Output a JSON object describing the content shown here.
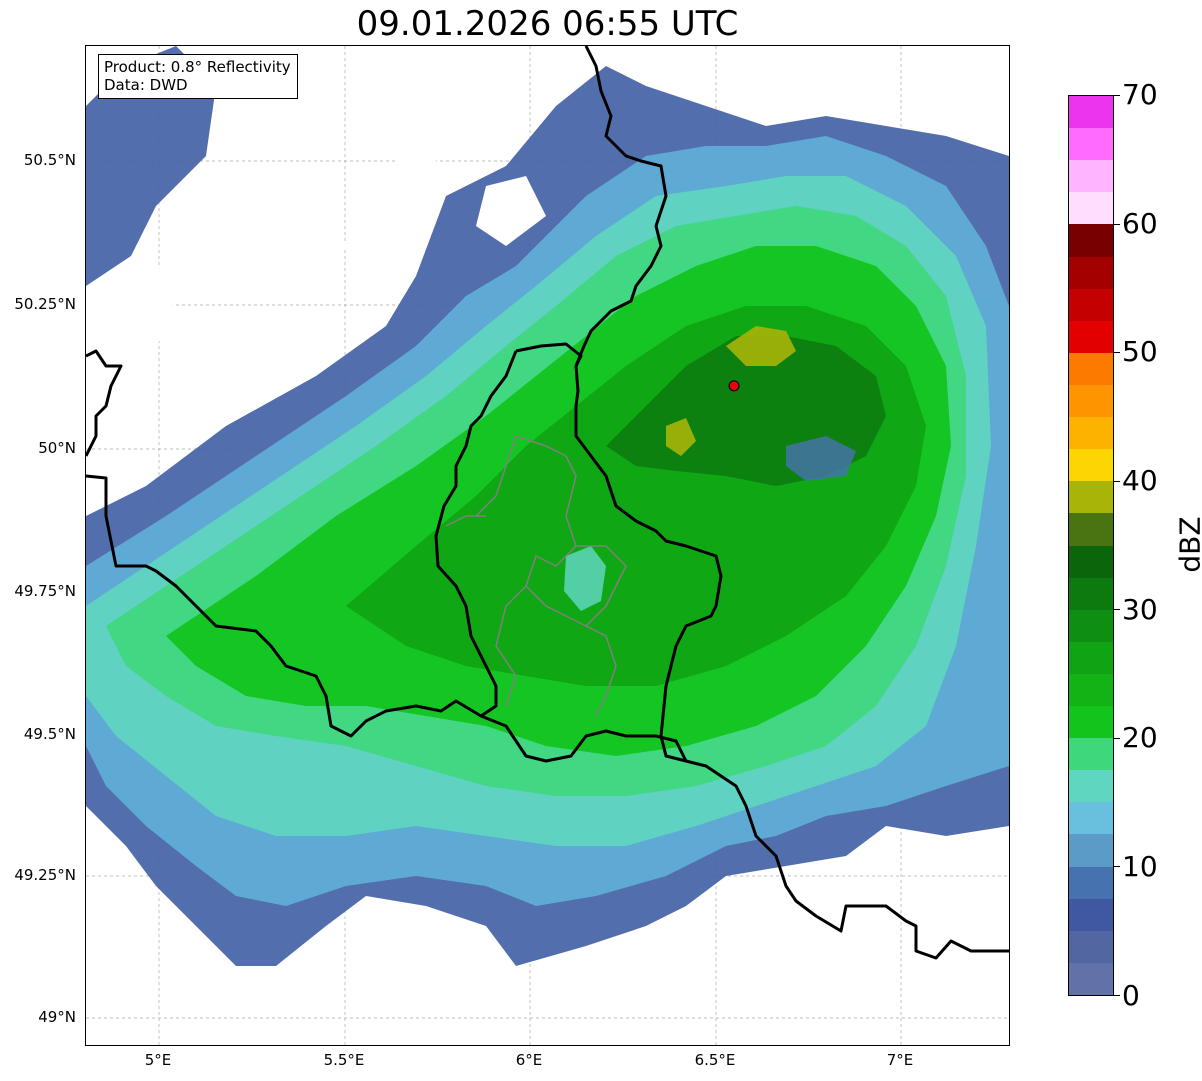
{
  "title": "09.01.2026 06:55 UTC",
  "info": {
    "product": "Product: 0.8° Reflectivity",
    "source": "Data: DWD"
  },
  "axes": {
    "lon_range": [
      4.8,
      7.3
    ],
    "lat_range": [
      48.95,
      50.7
    ],
    "lat_ticks": [
      "50.5°N",
      "50.25°N",
      "50°N",
      "49.75°N",
      "49.5°N",
      "49.25°N",
      "49°N"
    ],
    "lat_values": [
      50.5,
      50.25,
      50.0,
      49.75,
      49.5,
      49.25,
      49.0
    ],
    "lon_ticks": [
      "5°E",
      "5.5°E",
      "6°E",
      "6.5°E",
      "7°E"
    ],
    "lon_values": [
      5.0,
      5.5,
      6.0,
      6.5,
      7.0
    ]
  },
  "radar_site": {
    "lon": 6.55,
    "lat": 50.11,
    "color": "#e8000b"
  },
  "colorbar": {
    "label": "dBZ",
    "min": 0,
    "max": 70,
    "tick_labels": [
      "70",
      "60",
      "50",
      "40",
      "30",
      "20",
      "10",
      "0"
    ],
    "tick_values": [
      70,
      60,
      50,
      40,
      30,
      20,
      10,
      0
    ],
    "colors": [
      "#6271a8",
      "#5267a2",
      "#40589f",
      "#4772b0",
      "#5a9bc8",
      "#68c0de",
      "#5fd6c0",
      "#3fd77c",
      "#13c41d",
      "#12b415",
      "#10a313",
      "#0e8f11",
      "#0c7a0e",
      "#0a650b",
      "#4a7312",
      "#a9b409",
      "#fdd500",
      "#fdb200",
      "#fd9400",
      "#fd7a00",
      "#e30000",
      "#c40000",
      "#a50000",
      "#780000",
      "#ffddff",
      "#ffb4ff",
      "#ff6bff",
      "#ec33ee"
    ]
  }
}
